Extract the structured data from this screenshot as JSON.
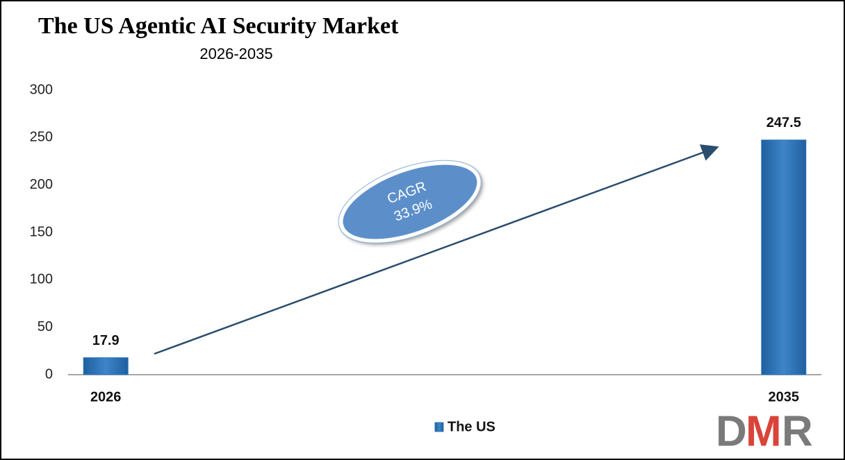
{
  "chart_data": {
    "type": "bar",
    "title": "The US Agentic AI Security Market",
    "subtitle": "2026-2035",
    "categories": [
      "2026",
      null,
      null,
      null,
      null,
      null,
      null,
      null,
      null,
      "2035"
    ],
    "series": [
      {
        "name": "The US",
        "color": "#2e75b6",
        "values": [
          17.9,
          null,
          null,
          null,
          null,
          null,
          null,
          null,
          null,
          247.5
        ]
      }
    ],
    "ylim": [
      0,
      300
    ],
    "yticks": [
      0,
      50,
      100,
      150,
      200,
      250,
      300
    ],
    "grid": false,
    "annotation": {
      "label": "CAGR",
      "value": "33.9%"
    },
    "logo": {
      "d": "D",
      "m": "M",
      "r": "R"
    }
  }
}
